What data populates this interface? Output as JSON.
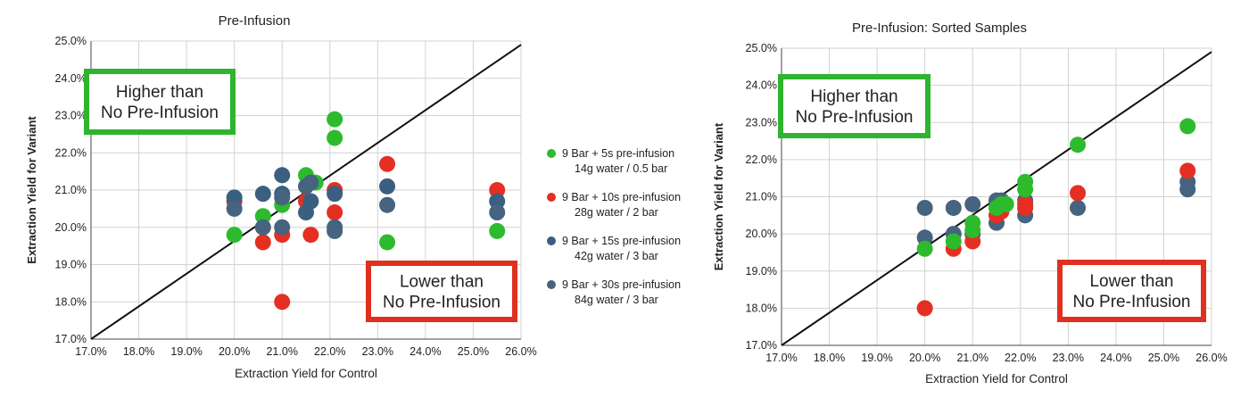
{
  "chart_data": [
    {
      "type": "scatter",
      "title": "Pre-Infusion",
      "xlabel": "Extraction Yield for Control",
      "ylabel": "Extraction Yield for Variant",
      "xlim": [
        0.17,
        0.26
      ],
      "ylim": [
        0.17,
        0.25
      ],
      "x_ticks": [
        "17.0%",
        "18.0%",
        "19.0%",
        "20.0%",
        "21.0%",
        "22.0%",
        "23.0%",
        "24.0%",
        "25.0%",
        "26.0%"
      ],
      "y_ticks": [
        "17.0%",
        "18.0%",
        "19.0%",
        "20.0%",
        "21.0%",
        "22.0%",
        "23.0%",
        "24.0%",
        "25.0%"
      ],
      "grid": true,
      "reference_line": "y = x",
      "legend": "right",
      "annotations": [
        {
          "lines": [
            "Higher than",
            "No Pre-Infusion"
          ],
          "color": "#2fb42f",
          "placement": "top-left"
        },
        {
          "lines": [
            "Lower than",
            "No Pre-Infusion"
          ],
          "color": "#e03020",
          "placement": "bottom-right"
        }
      ],
      "series": [
        {
          "name": "9 Bar + 5s pre-infusion",
          "name2": "14g water / 0.5 bar",
          "color": "#2dbb2d",
          "points": [
            [
              0.2,
              0.198
            ],
            [
              0.206,
              0.203
            ],
            [
              0.21,
              0.206
            ],
            [
              0.215,
              0.214
            ],
            [
              0.217,
              0.212
            ],
            [
              0.221,
              0.229
            ],
            [
              0.221,
              0.224
            ],
            [
              0.232,
              0.196
            ],
            [
              0.255,
              0.199
            ]
          ]
        },
        {
          "name": "9 Bar + 10s pre-infusion",
          "name2": "28g water / 2 bar",
          "color": "#e52f23",
          "points": [
            [
              0.2,
              0.207
            ],
            [
              0.206,
              0.196
            ],
            [
              0.21,
              0.198
            ],
            [
              0.21,
              0.18
            ],
            [
              0.215,
              0.207
            ],
            [
              0.216,
              0.198
            ],
            [
              0.221,
              0.204
            ],
            [
              0.221,
              0.21
            ],
            [
              0.232,
              0.217
            ],
            [
              0.255,
              0.21
            ]
          ]
        },
        {
          "name": "9 Bar + 15s pre-infusion",
          "name2": "42g water / 3 bar",
          "color": "#3b5f80",
          "points": [
            [
              0.2,
              0.208
            ],
            [
              0.206,
              0.209
            ],
            [
              0.21,
              0.214
            ],
            [
              0.21,
              0.209
            ],
            [
              0.215,
              0.204
            ],
            [
              0.216,
              0.207
            ],
            [
              0.221,
              0.209
            ],
            [
              0.232,
              0.211
            ],
            [
              0.255,
              0.207
            ]
          ]
        },
        {
          "name": "9 Bar + 30s pre-infusion",
          "name2": "84g water / 3 bar",
          "color": "#46637f",
          "points": [
            [
              0.2,
              0.205
            ],
            [
              0.206,
              0.2
            ],
            [
              0.21,
              0.2
            ],
            [
              0.21,
              0.208
            ],
            [
              0.215,
              0.211
            ],
            [
              0.216,
              0.212
            ],
            [
              0.221,
              0.2
            ],
            [
              0.221,
              0.199
            ],
            [
              0.232,
              0.206
            ],
            [
              0.255,
              0.204
            ]
          ]
        }
      ]
    },
    {
      "type": "scatter",
      "title": "Pre-Infusion: Sorted Samples",
      "xlabel": "Extraction Yield for Control",
      "ylabel": "Extraction Yield for Variant",
      "xlim": [
        0.17,
        0.26
      ],
      "ylim": [
        0.17,
        0.25
      ],
      "x_ticks": [
        "17.0%",
        "18.0%",
        "19.0%",
        "20.0%",
        "21.0%",
        "22.0%",
        "23.0%",
        "24.0%",
        "25.0%",
        "26.0%"
      ],
      "y_ticks": [
        "17.0%",
        "18.0%",
        "19.0%",
        "20.0%",
        "21.0%",
        "22.0%",
        "23.0%",
        "24.0%",
        "25.0%"
      ],
      "grid": true,
      "reference_line": "y = x",
      "annotations": [
        {
          "lines": [
            "Higher than",
            "No Pre-Infusion"
          ],
          "color": "#2fb42f",
          "placement": "top-left"
        },
        {
          "lines": [
            "Lower than",
            "No Pre-Infusion"
          ],
          "color": "#e03020",
          "placement": "bottom-right"
        }
      ],
      "series": [
        {
          "color": "#46637f",
          "points": [
            [
              0.2,
              0.207
            ],
            [
              0.2,
              0.199
            ],
            [
              0.206,
              0.207
            ],
            [
              0.206,
              0.2
            ],
            [
              0.21,
              0.208
            ],
            [
              0.21,
              0.2
            ],
            [
              0.215,
              0.209
            ],
            [
              0.215,
              0.203
            ],
            [
              0.216,
              0.209
            ],
            [
              0.221,
              0.209
            ],
            [
              0.221,
              0.205
            ],
            [
              0.232,
              0.207
            ],
            [
              0.255,
              0.214
            ],
            [
              0.255,
              0.212
            ]
          ]
        },
        {
          "color": "#e52f23",
          "points": [
            [
              0.2,
              0.18
            ],
            [
              0.206,
              0.196
            ],
            [
              0.21,
              0.198
            ],
            [
              0.215,
              0.205
            ],
            [
              0.216,
              0.206
            ],
            [
              0.221,
              0.208
            ],
            [
              0.221,
              0.207
            ],
            [
              0.232,
              0.211
            ],
            [
              0.255,
              0.217
            ]
          ]
        },
        {
          "color": "#2dbb2d",
          "points": [
            [
              0.2,
              0.196
            ],
            [
              0.206,
              0.198
            ],
            [
              0.21,
              0.203
            ],
            [
              0.21,
              0.201
            ],
            [
              0.215,
              0.207
            ],
            [
              0.216,
              0.208
            ],
            [
              0.217,
              0.208
            ],
            [
              0.221,
              0.214
            ],
            [
              0.221,
              0.212
            ],
            [
              0.232,
              0.224
            ],
            [
              0.255,
              0.229
            ]
          ]
        }
      ]
    }
  ]
}
